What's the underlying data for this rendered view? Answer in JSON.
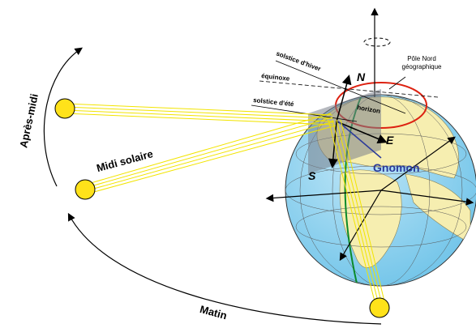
{
  "arcs": {
    "afternoon": "Après-midi",
    "noon": "Midi solaire",
    "morning": "Matin"
  },
  "planes": {
    "winter": "solstice d'hiver",
    "equinox": "équinoxe",
    "summer": "solstice d'été",
    "horizon": "horizon"
  },
  "pole": {
    "line1": "Pôle Nord",
    "line2": "géographique"
  },
  "directions": {
    "north": "N",
    "east": "E",
    "south": "S"
  },
  "gnomon": "Gnomon"
}
